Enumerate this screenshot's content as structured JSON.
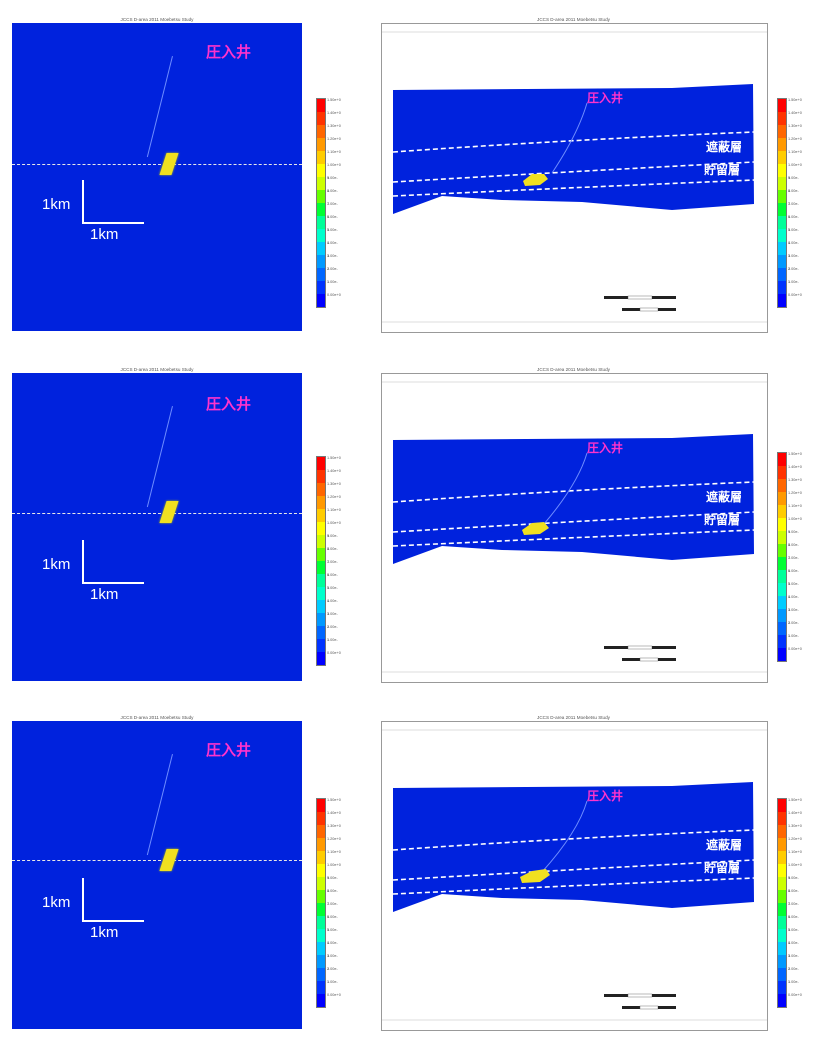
{
  "panels": [
    {
      "plan": {
        "title_line1": "JCCS D-area 2011 Moebetsu Study",
        "title_line2": "Low Permeability - Molality(CO2) 3003-01-01"
      },
      "section": {
        "title_line1": "JCCS D-area 2011 Moebetsu Study",
        "title_line2": "Low Permeability - Molality(CO2) 3003-01-01     J layer: 31"
      }
    },
    {
      "plan": {
        "title_line1": "JCCS D-area 2011 Moebetsu Study",
        "title_line2": "Low Permeability - Molality(CO2) 3020-01-01"
      },
      "section": {
        "title_line1": "JCCS D-area 2011 Moebetsu Study",
        "title_line2": "Low Permeability - Molality(CO2) 3020-01-01     J layer: 31"
      }
    },
    {
      "plan": {
        "title_line1": "JCCS D-area 2011 Moebetsu Study",
        "title_line2": "Low Permeability - Molality(CO2) 4000-01-01"
      },
      "section": {
        "title_line1": "JCCS D-area 2011 Moebetsu Study",
        "title_line2": "Low Permeability - Molality(CO2) 4000-01-01     J layer: 31"
      }
    }
  ],
  "labels": {
    "injection_well": "圧入井",
    "cap_rock": "遮蔽層",
    "reservoir": "貯留層",
    "scale_vertical": "1km",
    "scale_horizontal": "1km"
  },
  "colorbar": {
    "ticks_plan": [
      "1.50e+0",
      "1.40e+0",
      "1.30e+0",
      "1.20e+0",
      "1.10e+0",
      "1.00e+0",
      "9.00e-1",
      "8.00e-1",
      "7.00e-1",
      "6.00e-1",
      "5.00e-1",
      "4.00e-1",
      "3.00e-1",
      "2.00e-1",
      "1.00e-1",
      "0.00e+0"
    ],
    "ticks_section": [
      "1.50e+0",
      "1.40e+0",
      "1.30e+0",
      "1.20e+0",
      "1.10e+0",
      "1.00e+0",
      "9.00e-1",
      "8.00e-1",
      "7.00e-1",
      "6.00e-1",
      "5.00e-1",
      "4.00e-1",
      "3.00e-1",
      "2.00e-1",
      "1.00e-1",
      "0.00e+0"
    ],
    "colors": [
      "#ff0000",
      "#ff3300",
      "#ff6600",
      "#ff9900",
      "#ffcc00",
      "#ffff00",
      "#ccff00",
      "#66ff00",
      "#00ff33",
      "#00ff99",
      "#00ffcc",
      "#00ccff",
      "#0099ff",
      "#0066ff",
      "#0033ff",
      "#0000ff"
    ]
  },
  "colors": {
    "background_field": "#0022dd",
    "plume": "#f0e020",
    "well_label": "#ff33cc",
    "dashed_line": "#e8e8e8"
  }
}
